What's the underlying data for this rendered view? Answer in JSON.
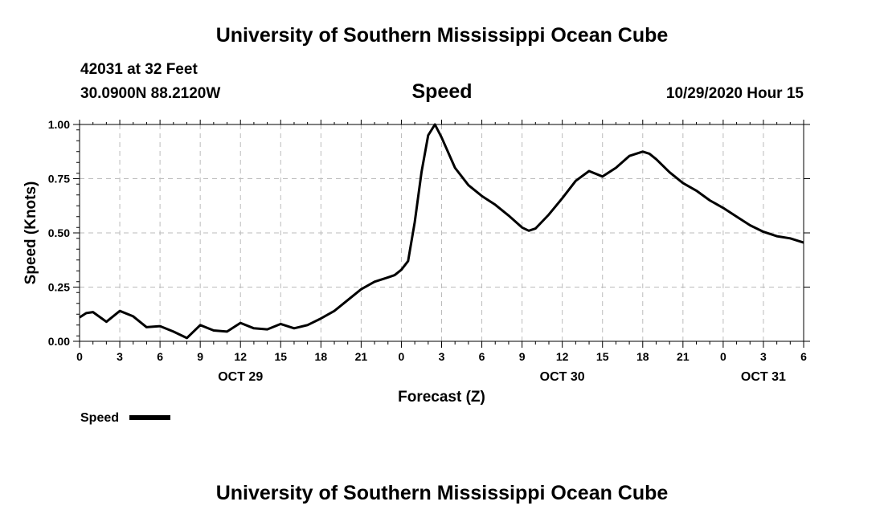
{
  "header": {
    "title_top": "University of Southern Mississippi Ocean Cube",
    "station": "42031 at 32 Feet",
    "location": "30.0900N 88.2120W",
    "variable": "Speed",
    "datetime": "10/29/2020 Hour 15",
    "title_bottom": "University of Southern Mississippi Ocean Cube"
  },
  "chart_data": {
    "type": "line",
    "ylabel": "Speed (Knots)",
    "xlabel": "Forecast (Z)",
    "ylim": [
      0,
      1.0
    ],
    "xlim": [
      0,
      54
    ],
    "yticks": [
      "0.00",
      "0.25",
      "0.50",
      "0.75",
      "1.00"
    ],
    "xticks": [
      "0",
      "3",
      "6",
      "9",
      "12",
      "15",
      "18",
      "21",
      "0",
      "3",
      "6",
      "9",
      "12",
      "15",
      "18",
      "21",
      "0",
      "3",
      "6"
    ],
    "date_labels": [
      {
        "label": "OCT 29",
        "hour": 12
      },
      {
        "label": "OCT 30",
        "hour": 36
      },
      {
        "label": "OCT 31",
        "hour": 51
      }
    ],
    "grid": true,
    "legend": "bottom-left",
    "series": [
      {
        "name": "Speed",
        "color": "#000000",
        "x": [
          0,
          0.5,
          1,
          2,
          3,
          4,
          5,
          6,
          7,
          8,
          9,
          10,
          11,
          12,
          13,
          14,
          15,
          16,
          17,
          18,
          19,
          20,
          21,
          22,
          23,
          23.5,
          24,
          24.5,
          25,
          25.5,
          26,
          26.5,
          27,
          28,
          29,
          30,
          31,
          32,
          33,
          33.5,
          34,
          35,
          36,
          37,
          38,
          39,
          40,
          41,
          42,
          42.5,
          43,
          44,
          45,
          46,
          47,
          48,
          49,
          50,
          51,
          52,
          53,
          54
        ],
        "y": [
          0.11,
          0.13,
          0.135,
          0.09,
          0.14,
          0.115,
          0.065,
          0.07,
          0.045,
          0.015,
          0.075,
          0.05,
          0.045,
          0.085,
          0.06,
          0.055,
          0.08,
          0.06,
          0.075,
          0.105,
          0.14,
          0.19,
          0.24,
          0.275,
          0.295,
          0.305,
          0.33,
          0.37,
          0.55,
          0.78,
          0.95,
          1.0,
          0.94,
          0.8,
          0.72,
          0.67,
          0.63,
          0.58,
          0.525,
          0.51,
          0.52,
          0.585,
          0.66,
          0.74,
          0.785,
          0.76,
          0.8,
          0.855,
          0.875,
          0.865,
          0.84,
          0.78,
          0.73,
          0.695,
          0.65,
          0.615,
          0.575,
          0.535,
          0.505,
          0.485,
          0.475,
          0.455
        ]
      }
    ]
  }
}
